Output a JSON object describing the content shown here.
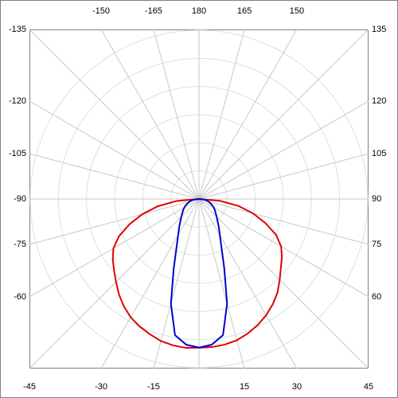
{
  "chart_data": {
    "type": "polar",
    "angle_ticks": [
      -135,
      -150,
      -165,
      180,
      165,
      150,
      135,
      120,
      105,
      90,
      75,
      60,
      45,
      30,
      15,
      -15,
      -30,
      -45,
      -60,
      -75,
      -90,
      -105,
      -120
    ],
    "rlim": [
      0,
      210
    ],
    "rticks": [
      35,
      70,
      105,
      140,
      175,
      210
    ],
    "angles": [
      -90,
      -85,
      -80,
      -75,
      -70,
      -65,
      -60,
      -55,
      -50,
      -45,
      -40,
      -35,
      -30,
      -25,
      -20,
      -15,
      -10,
      -5,
      0,
      5,
      10,
      15,
      20,
      25,
      30,
      35,
      40,
      45,
      50,
      55,
      60,
      65,
      70,
      75,
      80,
      85,
      90
    ],
    "series": [
      {
        "color": "#e00000",
        "values": [
          0,
          28,
          52,
          73,
          92,
          110,
          123,
          131,
          138,
          146,
          155,
          163,
          170,
          175,
          179,
          183,
          185,
          186,
          185,
          185,
          184,
          182,
          178,
          173,
          167,
          160,
          152,
          142,
          133,
          126,
          118,
          106,
          88,
          70,
          50,
          26,
          0
        ]
      },
      {
        "color": "#0000d0",
        "values": [
          0,
          5,
          9,
          12,
          15,
          18,
          21,
          24,
          27,
          31,
          36,
          43,
          52,
          66,
          92,
          135,
          172,
          182,
          185,
          182,
          172,
          135,
          92,
          66,
          52,
          43,
          36,
          31,
          27,
          24,
          21,
          18,
          15,
          12,
          9,
          5,
          0
        ]
      }
    ]
  }
}
